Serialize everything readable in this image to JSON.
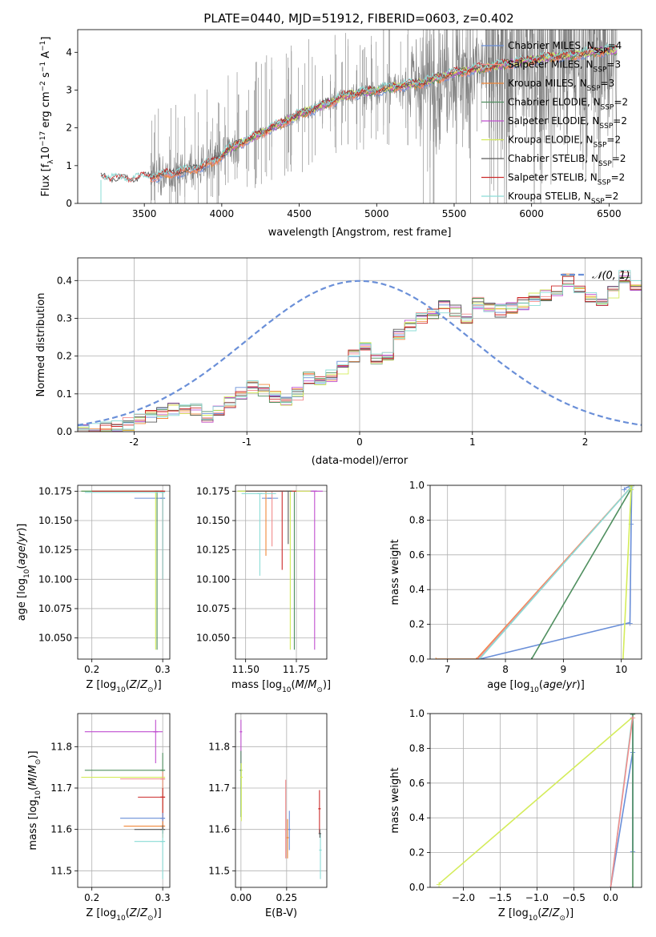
{
  "figure": {
    "title": "PLATE=0440, MJD=51912, FIBERID=0603, z=0.402",
    "colors": {
      "Chabrier MILES": "#6a8fd8",
      "Salpeter MILES": "#f28c8c",
      "Kroupa MILES": "#f0883a",
      "Chabrier ELODIE": "#4f8f5f",
      "Salpeter ELODIE": "#c04fd0",
      "Kroupa ELODIE": "#d4ec5a",
      "Chabrier STELIB": "#5a5a5a",
      "Salpeter STELIB": "#cc2a2a",
      "Kroupa STELIB": "#8adcd6"
    },
    "grid_color": "#b0b0b0"
  },
  "chart_data": [
    {
      "id": "spectrum",
      "type": "line",
      "xlabel": "wavelength [Angstrom, rest frame]",
      "ylabel": "Flux [f_λ 10^-17 erg cm^-2 s^-1 A^-1]",
      "xlim": [
        3070,
        6710
      ],
      "ylim": [
        0,
        4.6
      ],
      "xticks": [
        3500,
        4000,
        4500,
        5000,
        5500,
        6000,
        6500
      ],
      "yticks": [
        0,
        1,
        2,
        3,
        4
      ],
      "grid": false,
      "legend": "top-right",
      "legend_entries": [
        {
          "model": "Chabrier MILES",
          "n": "4"
        },
        {
          "model": "Salpeter MILES",
          "n": "3"
        },
        {
          "model": "Kroupa MILES",
          "n": "3"
        },
        {
          "model": "Chabrier ELODIE",
          "n": "2"
        },
        {
          "model": "Salpeter ELODIE",
          "n": "2"
        },
        {
          "model": "Kroupa ELODIE",
          "n": "2"
        },
        {
          "model": "Chabrier STELIB",
          "n": "2"
        },
        {
          "model": "Salpeter STELIB",
          "n": "2"
        },
        {
          "model": "Kroupa STELIB",
          "n": "2"
        }
      ],
      "data_color": "#808080",
      "data_range": [
        3540,
        6550
      ],
      "model_ranges": {
        "MILES": [
          3540,
          6550
        ],
        "ELODIE": [
          4000,
          6550
        ],
        "STELIB": [
          3220,
          6550
        ]
      },
      "continuum": {
        "x": [
          3220,
          3400,
          3540,
          3800,
          3950,
          4050,
          4300,
          4500,
          4800,
          5000,
          5300,
          5500,
          6000,
          6500
        ],
        "y": [
          0.68,
          0.62,
          0.7,
          0.88,
          1.1,
          1.45,
          1.95,
          2.35,
          2.85,
          3.0,
          3.2,
          3.45,
          3.8,
          4.05
        ]
      }
    },
    {
      "id": "residuals",
      "type": "area",
      "xlabel": "(data-model)/error",
      "ylabel": "Normed distribution",
      "xlim": [
        -2.5,
        2.5
      ],
      "ylim": [
        0,
        0.46
      ],
      "xticks": [
        -2,
        -1,
        0,
        1,
        2
      ],
      "yticks": [
        0.0,
        0.1,
        0.2,
        0.3,
        0.4
      ],
      "grid": true,
      "legend": "top-right",
      "gaussian": {
        "name": "𝒩(0, 1)",
        "color": "#6a8fd8"
      },
      "bin_edges_start": -2.5,
      "bin_width": 0.1,
      "base_hist": [
        0.005,
        0.005,
        0.008,
        0.012,
        0.02,
        0.03,
        0.04,
        0.05,
        0.06,
        0.065,
        0.06,
        0.04,
        0.06,
        0.08,
        0.1,
        0.12,
        0.11,
        0.09,
        0.08,
        0.1,
        0.14,
        0.13,
        0.15,
        0.17,
        0.2,
        0.23,
        0.19,
        0.2,
        0.26,
        0.28,
        0.3,
        0.31,
        0.33,
        0.32,
        0.3,
        0.34,
        0.33,
        0.32,
        0.33,
        0.34,
        0.35,
        0.36,
        0.37,
        0.4,
        0.38,
        0.36,
        0.34,
        0.37,
        0.41,
        0.39,
        0.36,
        0.38,
        0.37,
        0.36,
        0.34,
        0.32,
        0.3,
        0.29,
        0.31,
        0.3,
        0.27,
        0.26,
        0.22,
        0.23,
        0.21,
        0.2,
        0.19,
        0.2,
        0.18,
        0.19,
        0.17,
        0.15,
        0.18,
        0.16,
        0.14,
        0.15,
        0.13,
        0.1,
        0.12,
        0.11,
        0.08,
        0.1,
        0.09,
        0.07,
        0.08,
        0.06,
        0.07,
        0.05,
        0.06,
        0.04,
        0.05,
        0.06,
        0.05,
        0.04,
        0.05,
        0.06,
        0.05,
        0.07,
        0.06,
        0.05
      ]
    },
    {
      "id": "age-vs-Z",
      "type": "scatter",
      "xlabel": "Z [log10(Z/Z⊙)]",
      "ylabel": "age  [log10(age/yr)]",
      "xlim": [
        0.18,
        0.31
      ],
      "ylim": [
        10.032,
        10.18
      ],
      "xticks": [
        {
          "v": 0.2,
          "l": "0.2"
        },
        {
          "v": 0.3,
          "l": "0.3"
        }
      ],
      "yticks": [
        {
          "v": 10.05,
          "l": "10.050"
        },
        {
          "v": 10.075,
          "l": "10.075"
        },
        {
          "v": 10.1,
          "l": "10.100"
        },
        {
          "v": 10.125,
          "l": "10.125"
        },
        {
          "v": 10.15,
          "l": "10.150"
        },
        {
          "v": 10.175,
          "l": "10.175"
        }
      ],
      "grid": true,
      "points": [
        {
          "model": "Chabrier MILES",
          "x": 0.3,
          "xerr": [
            0.26,
            0.3
          ],
          "y": 10.169,
          "yerr": [
            10.169,
            10.169
          ]
        },
        {
          "model": "Kroupa ELODIE",
          "x": 0.29,
          "xerr": [
            0.185,
            0.3
          ],
          "y": 10.175,
          "yerr": [
            10.04,
            10.175
          ]
        },
        {
          "model": "Chabrier ELODIE",
          "x": 0.292,
          "xerr": [
            0.185,
            0.3
          ],
          "y": 10.175,
          "yerr": [
            10.04,
            10.175
          ]
        },
        {
          "model": "Salpeter STELIB",
          "x": 0.3,
          "xerr": [
            0.2,
            0.3
          ],
          "y": 10.175,
          "yerr": [
            10.1,
            10.175
          ]
        },
        {
          "model": "Kroupa STELIB",
          "x": 0.3,
          "xerr": [
            0.19,
            0.3
          ],
          "y": 10.174,
          "yerr": [
            10.1,
            10.174
          ]
        }
      ]
    },
    {
      "id": "age-vs-mass",
      "type": "scatter",
      "xlabel": "mass [log10(M/M⊙)]",
      "ylabel": "",
      "xlim": [
        11.45,
        11.9
      ],
      "ylim": [
        10.032,
        10.18
      ],
      "xticks": [
        {
          "v": 11.5,
          "l": "11.50"
        },
        {
          "v": 11.75,
          "l": "11.75"
        }
      ],
      "yticks": [
        {
          "v": 10.05,
          "l": "10.050"
        },
        {
          "v": 10.075,
          "l": "10.075"
        },
        {
          "v": 10.1,
          "l": "10.100"
        },
        {
          "v": 10.125,
          "l": "10.125"
        },
        {
          "v": 10.15,
          "l": "10.150"
        },
        {
          "v": 10.175,
          "l": "10.175"
        }
      ],
      "grid": true,
      "points": [
        {
          "model": "Chabrier MILES",
          "x": 11.62,
          "xerr": [
            11.58,
            11.66
          ],
          "y": 10.169,
          "yerr": [
            10.169,
            10.169
          ]
        },
        {
          "model": "Salpeter MILES",
          "x": 11.63,
          "xerr": [
            11.46,
            11.73
          ],
          "y": 10.175,
          "yerr": [
            10.128,
            10.175
          ]
        },
        {
          "model": "Kroupa MILES",
          "x": 11.6,
          "xerr": [
            11.5,
            11.7
          ],
          "y": 10.175,
          "yerr": [
            10.12,
            10.175
          ]
        },
        {
          "model": "Chabrier ELODIE",
          "x": 11.74,
          "xerr": [
            11.46,
            11.85
          ],
          "y": 10.175,
          "yerr": [
            10.04,
            10.175
          ]
        },
        {
          "model": "Salpeter ELODIE",
          "x": 11.84,
          "xerr": [
            11.62,
            11.88
          ],
          "y": 10.175,
          "yerr": [
            10.04,
            10.175
          ]
        },
        {
          "model": "Kroupa ELODIE",
          "x": 11.72,
          "xerr": [
            11.46,
            11.82
          ],
          "y": 10.175,
          "yerr": [
            10.04,
            10.175
          ]
        },
        {
          "model": "Salpeter STELIB",
          "x": 11.68,
          "xerr": [
            11.5,
            11.75
          ],
          "y": 10.175,
          "yerr": [
            10.108,
            10.175
          ]
        },
        {
          "model": "Kroupa STELIB",
          "x": 11.57,
          "xerr": [
            11.48,
            11.65
          ],
          "y": 10.173,
          "yerr": [
            10.103,
            10.173
          ]
        },
        {
          "model": "Chabrier STELIB",
          "x": 11.71,
          "xerr": [
            11.5,
            11.73
          ],
          "y": 10.175,
          "yerr": [
            10.13,
            10.175
          ]
        }
      ]
    },
    {
      "id": "mass-weight-vs-age",
      "type": "line",
      "xlabel": "age  [log10(age/yr)]",
      "ylabel": "mass weight",
      "xlim": [
        6.7,
        10.35
      ],
      "ylim": [
        0,
        1.0
      ],
      "xticks": [
        {
          "v": 7,
          "l": "7"
        },
        {
          "v": 8,
          "l": "8"
        },
        {
          "v": 9,
          "l": "9"
        },
        {
          "v": 10,
          "l": "10"
        }
      ],
      "yticks": [
        {
          "v": 0,
          "l": "0.0"
        },
        {
          "v": 0.2,
          "l": "0.2"
        },
        {
          "v": 0.4,
          "l": "0.4"
        },
        {
          "v": 0.6,
          "l": "0.6"
        },
        {
          "v": 0.8,
          "l": "0.8"
        },
        {
          "v": 1.0,
          "l": "1.0"
        }
      ],
      "grid": true,
      "series": [
        {
          "model": "Chabrier MILES",
          "x": [
            7.55,
            10.15,
            10.17,
            10.18,
            10.05
          ],
          "y": [
            0.0,
            0.21,
            0.78,
            1.0,
            0.98
          ]
        },
        {
          "model": "Kroupa MILES",
          "x": [
            6.8,
            7.5,
            10.17
          ],
          "y": [
            0.0,
            0.0,
            0.99
          ]
        },
        {
          "model": "Salpeter MILES",
          "x": [
            7.52,
            10.17
          ],
          "y": [
            0.0,
            0.99
          ]
        },
        {
          "model": "Chabrier ELODIE",
          "x": [
            8.45,
            10.17
          ],
          "y": [
            0.0,
            0.98
          ]
        },
        {
          "model": "Kroupa STELIB",
          "x": [
            7.55,
            10.17
          ],
          "y": [
            0.0,
            0.99
          ]
        },
        {
          "model": "Kroupa ELODIE",
          "x": [
            10.03,
            10.17,
            10.17
          ],
          "y": [
            0.0,
            0.98,
            1.0
          ]
        }
      ]
    },
    {
      "id": "mass-vs-Z",
      "type": "scatter",
      "xlabel": "Z [log10(Z/Z⊙)]",
      "ylabel": "mass [log10(M/M⊙)]",
      "xlim": [
        0.18,
        0.31
      ],
      "ylim": [
        11.46,
        11.88
      ],
      "xticks": [
        {
          "v": 0.2,
          "l": "0.2"
        },
        {
          "v": 0.3,
          "l": "0.3"
        }
      ],
      "yticks": [
        {
          "v": 11.5,
          "l": "11.5"
        },
        {
          "v": 11.6,
          "l": "11.6"
        },
        {
          "v": 11.7,
          "l": "11.7"
        },
        {
          "v": 11.8,
          "l": "11.8"
        }
      ],
      "grid": true,
      "points": [
        {
          "model": "Salpeter ELODIE",
          "x": 0.29,
          "xerr": [
            0.19,
            0.3
          ],
          "y": 11.836,
          "yerr": [
            11.76,
            11.865
          ]
        },
        {
          "model": "Chabrier ELODIE",
          "x": 0.3,
          "xerr": [
            0.19,
            0.3
          ],
          "y": 11.743,
          "yerr": [
            11.64,
            11.785
          ]
        },
        {
          "model": "Kroupa ELODIE",
          "x": 0.3,
          "xerr": [
            0.185,
            0.3
          ],
          "y": 11.726,
          "yerr": [
            11.62,
            11.74
          ]
        },
        {
          "model": "Salpeter MILES",
          "x": 0.3,
          "xerr": [
            0.24,
            0.3
          ],
          "y": 11.722,
          "yerr": [
            11.6,
            11.74
          ]
        },
        {
          "model": "Salpeter STELIB",
          "x": 0.3,
          "xerr": [
            0.265,
            0.3
          ],
          "y": 11.678,
          "yerr": [
            11.59,
            11.7
          ]
        },
        {
          "model": "Chabrier MILES",
          "x": 0.3,
          "xerr": [
            0.24,
            0.3
          ],
          "y": 11.627,
          "yerr": [
            11.6,
            11.64
          ]
        },
        {
          "model": "Kroupa MILES",
          "x": 0.3,
          "xerr": [
            0.245,
            0.3
          ],
          "y": 11.608,
          "yerr": [
            11.58,
            11.62
          ]
        },
        {
          "model": "Chabrier STELIB",
          "x": 0.3,
          "xerr": [
            0.26,
            0.3
          ],
          "y": 11.6,
          "yerr": [
            11.59,
            11.61
          ]
        },
        {
          "model": "Kroupa STELIB",
          "x": 0.3,
          "xerr": [
            0.26,
            0.3
          ],
          "y": 11.571,
          "yerr": [
            11.48,
            11.6
          ]
        }
      ]
    },
    {
      "id": "mass-vs-EBV",
      "type": "scatter",
      "xlabel": "E(B-V)",
      "ylabel": "",
      "xlim": [
        -0.03,
        0.47
      ],
      "ylim": [
        11.46,
        11.88
      ],
      "xticks": [
        {
          "v": 0.0,
          "l": "0.00"
        },
        {
          "v": 0.25,
          "l": "0.25"
        }
      ],
      "yticks": [
        {
          "v": 11.5,
          "l": "11.5"
        },
        {
          "v": 11.6,
          "l": "11.6"
        },
        {
          "v": 11.7,
          "l": "11.7"
        },
        {
          "v": 11.8,
          "l": "11.8"
        }
      ],
      "grid": true,
      "points": [
        {
          "model": "Salpeter ELODIE",
          "x": 0.0,
          "xerr": [
            0.0,
            0.0
          ],
          "y": 11.836,
          "yerr": [
            11.76,
            11.865
          ]
        },
        {
          "model": "Chabrier ELODIE",
          "x": 0.0,
          "xerr": [
            0.0,
            0.0
          ],
          "y": 11.743,
          "yerr": [
            11.63,
            11.79
          ]
        },
        {
          "model": "Kroupa ELODIE",
          "x": 0.002,
          "xerr": [
            0.002,
            0.002
          ],
          "y": 11.726,
          "yerr": [
            11.62,
            11.76
          ]
        },
        {
          "model": "Salpeter MILES",
          "x": 0.245,
          "xerr": [
            0.245,
            0.245
          ],
          "y": 11.6,
          "yerr": [
            11.53,
            11.72
          ]
        },
        {
          "model": "Chabrier MILES",
          "x": 0.265,
          "xerr": [
            0.265,
            0.265
          ],
          "y": 11.6,
          "yerr": [
            11.55,
            11.645
          ]
        },
        {
          "model": "Kroupa MILES",
          "x": 0.255,
          "xerr": [
            0.255,
            0.255
          ],
          "y": 11.58,
          "yerr": [
            11.53,
            11.625
          ]
        },
        {
          "model": "Salpeter STELIB",
          "x": 0.43,
          "xerr": [
            0.43,
            0.43
          ],
          "y": 11.65,
          "yerr": [
            11.59,
            11.695
          ]
        },
        {
          "model": "Kroupa STELIB",
          "x": 0.435,
          "xerr": [
            0.435,
            0.435
          ],
          "y": 11.55,
          "yerr": [
            11.48,
            11.59
          ]
        },
        {
          "model": "Chabrier STELIB",
          "x": 0.432,
          "xerr": [
            0.432,
            0.432
          ],
          "y": 11.59,
          "yerr": [
            11.58,
            11.6
          ]
        }
      ]
    },
    {
      "id": "mass-weight-vs-Z",
      "type": "line",
      "xlabel": "Z [log10(Z/Z⊙)]",
      "ylabel": "mass weight",
      "xlim": [
        -2.45,
        0.42
      ],
      "ylim": [
        0,
        1.0
      ],
      "xticks": [
        {
          "v": -2.0,
          "l": "−2.0"
        },
        {
          "v": -1.5,
          "l": "−1.5"
        },
        {
          "v": -1.0,
          "l": "−1.0"
        },
        {
          "v": -0.5,
          "l": "−0.5"
        },
        {
          "v": 0.0,
          "l": "0.0"
        }
      ],
      "yticks": [
        {
          "v": 0,
          "l": "0.0"
        },
        {
          "v": 0.2,
          "l": "0.2"
        },
        {
          "v": 0.4,
          "l": "0.4"
        },
        {
          "v": 0.6,
          "l": "0.6"
        },
        {
          "v": 0.8,
          "l": "0.8"
        },
        {
          "v": 1.0,
          "l": "1.0"
        }
      ],
      "grid": true,
      "series": [
        {
          "model": "Kroupa ELODIE",
          "x": [
            -2.33,
            0.3
          ],
          "y": [
            0.02,
            0.98
          ]
        },
        {
          "model": "Chabrier MILES",
          "x": [
            0.0,
            0.3,
            0.3,
            0.3
          ],
          "y": [
            0.0,
            0.78,
            0.21,
            1.0
          ]
        },
        {
          "model": "Kroupa STELIB",
          "x": [
            0.0,
            0.3
          ],
          "y": [
            0.0,
            1.0
          ]
        },
        {
          "model": "Chabrier ELODIE",
          "x": [
            0.3,
            0.3
          ],
          "y": [
            0.0,
            1.0
          ]
        },
        {
          "model": "Salpeter MILES",
          "x": [
            0.0,
            0.3
          ],
          "y": [
            0.0,
            0.98
          ]
        }
      ]
    }
  ]
}
